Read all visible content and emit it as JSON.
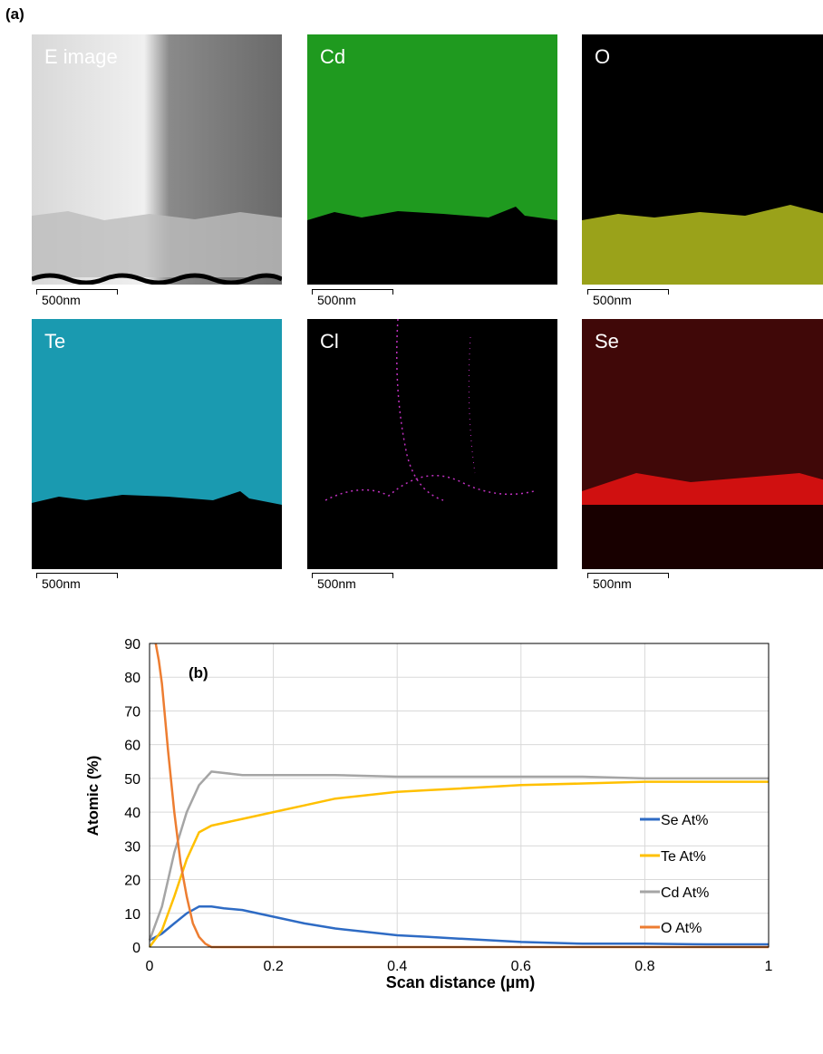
{
  "panel_a_label": "(a)",
  "maps": [
    {
      "label": "E image",
      "scale": "500nm",
      "color": "#b8b8b8"
    },
    {
      "label": "Cd",
      "scale": "500nm",
      "color": "#1f9a1f"
    },
    {
      "label": "O",
      "scale": "500nm",
      "color": "#9aa21a"
    },
    {
      "label": "Te",
      "scale": "500nm",
      "color": "#1a9ab0"
    },
    {
      "label": "Cl",
      "scale": "500nm",
      "color": "#c030c0"
    },
    {
      "label": "Se",
      "scale": "500nm",
      "color": "#d01010"
    }
  ],
  "chart_data": {
    "type": "line",
    "panel_label": "(b)",
    "xlabel": "Scan distance (µm)",
    "ylabel": "Atomic (%)",
    "xlim": [
      0,
      1
    ],
    "ylim": [
      0,
      90
    ],
    "xticks": [
      0,
      0.2,
      0.4,
      0.6,
      0.8,
      1
    ],
    "xtick_labels": [
      "0",
      "0.2",
      "0.4",
      "0.6",
      "0.8",
      "1"
    ],
    "yticks": [
      0,
      10,
      20,
      30,
      40,
      50,
      60,
      70,
      80,
      90
    ],
    "grid": true,
    "legend_position": "right",
    "series": [
      {
        "name": "Se At%",
        "color": "#2e6bc4",
        "x": [
          0,
          0.02,
          0.04,
          0.06,
          0.08,
          0.1,
          0.12,
          0.15,
          0.2,
          0.25,
          0.3,
          0.35,
          0.4,
          0.45,
          0.5,
          0.6,
          0.7,
          0.8,
          0.9,
          1.0
        ],
        "y": [
          2,
          4,
          7,
          10,
          12,
          12,
          11.5,
          11,
          9,
          7,
          5.5,
          4.5,
          3.5,
          3,
          2.5,
          1.5,
          1,
          1,
          0.8,
          0.8
        ]
      },
      {
        "name": "Te At%",
        "color": "#ffc000",
        "x": [
          0,
          0.02,
          0.04,
          0.06,
          0.08,
          0.1,
          0.15,
          0.2,
          0.25,
          0.3,
          0.35,
          0.4,
          0.45,
          0.5,
          0.6,
          0.7,
          0.8,
          0.9,
          1.0
        ],
        "y": [
          0,
          5,
          15,
          26,
          34,
          36,
          38,
          40,
          42,
          44,
          45,
          46,
          46.5,
          47,
          48,
          48.5,
          49,
          49,
          49
        ]
      },
      {
        "name": "Cd At%",
        "color": "#a5a5a5",
        "x": [
          0,
          0.02,
          0.04,
          0.06,
          0.08,
          0.1,
          0.15,
          0.2,
          0.3,
          0.4,
          0.5,
          0.6,
          0.7,
          0.8,
          0.9,
          1.0
        ],
        "y": [
          2,
          12,
          28,
          40,
          48,
          52,
          51,
          51,
          51,
          50.5,
          50.5,
          50.5,
          50.5,
          50,
          50,
          50
        ]
      },
      {
        "name": "O At%",
        "color": "#ed7d31",
        "x": [
          0.01,
          0.015,
          0.02,
          0.03,
          0.04,
          0.05,
          0.06,
          0.07,
          0.08,
          0.09,
          0.1,
          1.0
        ],
        "y": [
          90,
          85,
          78,
          58,
          40,
          25,
          15,
          7,
          3,
          1,
          0,
          0
        ]
      }
    ]
  }
}
